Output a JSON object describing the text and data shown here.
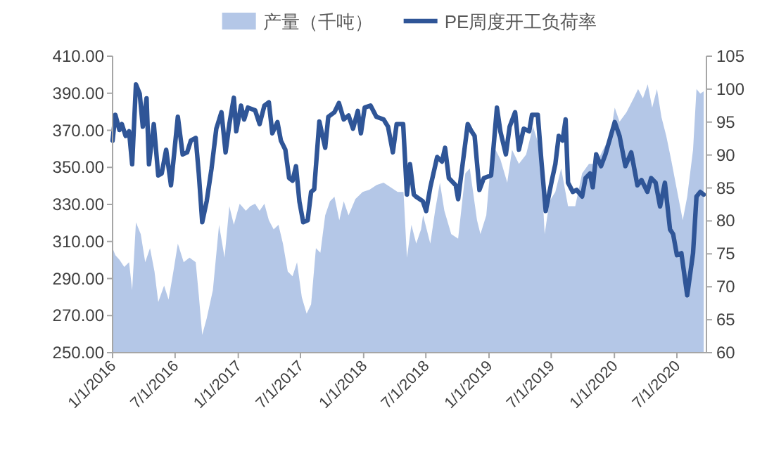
{
  "chart_data": {
    "type": "area",
    "legend": "top",
    "xlim": [
      "2016-01-01",
      "2020-09-25"
    ],
    "xticks": [
      {
        "value": "2016-01-01",
        "label": "1/1/2016"
      },
      {
        "value": "2016-07-01",
        "label": "7/1/2016"
      },
      {
        "value": "2017-01-01",
        "label": "1/1/2017"
      },
      {
        "value": "2017-07-01",
        "label": "7/1/2017"
      },
      {
        "value": "2018-01-01",
        "label": "1/1/2018"
      },
      {
        "value": "2018-07-01",
        "label": "7/1/2018"
      },
      {
        "value": "2019-01-01",
        "label": "1/1/2019"
      },
      {
        "value": "2019-07-01",
        "label": "7/1/2019"
      },
      {
        "value": "2020-01-01",
        "label": "1/1/2020"
      },
      {
        "value": "2020-07-01",
        "label": "7/1/2020"
      }
    ],
    "ylim": [
      250,
      410
    ],
    "yticks": [
      {
        "value": 250,
        "label": "250.00"
      },
      {
        "value": 270,
        "label": "270.00"
      },
      {
        "value": 290,
        "label": "290.00"
      },
      {
        "value": 310,
        "label": "310.00"
      },
      {
        "value": 330,
        "label": "330.00"
      },
      {
        "value": 350,
        "label": "350.00"
      },
      {
        "value": 370,
        "label": "370.00"
      },
      {
        "value": 390,
        "label": "390.00"
      },
      {
        "value": 410,
        "label": "410.00"
      }
    ],
    "y2lim": [
      60,
      105
    ],
    "y2ticks": [
      60,
      65,
      70,
      75,
      80,
      85,
      90,
      95,
      100,
      105
    ],
    "series": [
      {
        "name": "产量（千吨）",
        "color": "#b4c7e7",
        "x": [
          "2016-01-01",
          "2016-01-09",
          "2016-01-21",
          "2016-02-04",
          "2016-02-18",
          "2016-02-27",
          "2016-03-09",
          "2016-03-23",
          "2016-04-05",
          "2016-04-19",
          "2016-05-02",
          "2016-05-13",
          "2016-05-30",
          "2016-06-12",
          "2016-06-26",
          "2016-07-09",
          "2016-07-26",
          "2016-08-12",
          "2016-08-30",
          "2016-09-08",
          "2016-09-18",
          "2016-10-01",
          "2016-10-19",
          "2016-11-06",
          "2016-11-22",
          "2016-12-06",
          "2016-12-19",
          "2017-01-05",
          "2017-01-23",
          "2017-02-05",
          "2017-02-19",
          "2017-03-04",
          "2017-03-18",
          "2017-03-31",
          "2017-04-14",
          "2017-04-28",
          "2017-05-11",
          "2017-05-25",
          "2017-06-08",
          "2017-06-21",
          "2017-07-05",
          "2017-07-19",
          "2017-08-01",
          "2017-08-15",
          "2017-08-28",
          "2017-09-11",
          "2017-09-25",
          "2017-10-08",
          "2017-10-22",
          "2017-11-04",
          "2017-11-18",
          "2017-12-08",
          "2017-12-29",
          "2018-01-18",
          "2018-02-08",
          "2018-02-28",
          "2018-03-21",
          "2018-04-10",
          "2018-04-27",
          "2018-05-07",
          "2018-05-20",
          "2018-06-03",
          "2018-06-17",
          "2018-06-23",
          "2018-07-14",
          "2018-07-28",
          "2018-08-11",
          "2018-08-24",
          "2018-09-13",
          "2018-10-03",
          "2018-10-24",
          "2018-11-06",
          "2018-11-27",
          "2018-12-07",
          "2018-12-24",
          "2019-01-07",
          "2019-01-20",
          "2019-02-03",
          "2019-02-23",
          "2019-03-09",
          "2019-03-29",
          "2019-04-19",
          "2019-05-09",
          "2019-05-30",
          "2019-06-12",
          "2019-06-26",
          "2019-07-13",
          "2019-07-30",
          "2019-08-19",
          "2019-09-09",
          "2019-09-29",
          "2019-10-19",
          "2019-11-09",
          "2019-11-29",
          "2019-12-20",
          "2020-01-02",
          "2020-01-16",
          "2020-02-05",
          "2020-02-26",
          "2020-03-10",
          "2020-03-24",
          "2020-04-07",
          "2020-04-20",
          "2020-05-04",
          "2020-05-17",
          "2020-05-31",
          "2020-06-14",
          "2020-06-27",
          "2020-07-18",
          "2020-07-31",
          "2020-08-17",
          "2020-08-27",
          "2020-09-07",
          "2020-09-17"
        ],
        "values": [
          306.4,
          302.6,
          300.1,
          296.3,
          298.8,
          283.7,
          320.3,
          314.0,
          298.8,
          306.4,
          293.8,
          277.3,
          286.2,
          278.6,
          293.8,
          308.9,
          298.8,
          301.3,
          298.8,
          281.1,
          259.6,
          268.5,
          283.7,
          319.0,
          301.3,
          329.1,
          319.0,
          330.4,
          326.6,
          329.1,
          330.4,
          326.6,
          330.4,
          321.5,
          316.5,
          319.0,
          308.9,
          293.8,
          291.2,
          298.8,
          279.9,
          271.0,
          276.1,
          306.4,
          303.9,
          324.1,
          331.7,
          334.2,
          321.5,
          331.7,
          324.1,
          332.9,
          336.7,
          338.0,
          340.5,
          341.8,
          339.2,
          336.7,
          336.7,
          301.3,
          319.0,
          308.9,
          316.5,
          324.1,
          308.9,
          326.6,
          341.8,
          326.6,
          314.0,
          311.5,
          346.8,
          349.4,
          321.5,
          314.0,
          324.1,
          354.4,
          359.5,
          354.4,
          341.8,
          359.5,
          351.9,
          356.9,
          372.1,
          359.5,
          314.0,
          331.7,
          336.7,
          349.4,
          329.1,
          329.1,
          346.8,
          351.9,
          351.9,
          359.5,
          367.0,
          382.2,
          374.6,
          379.7,
          387.3,
          392.3,
          387.3,
          394.8,
          382.2,
          392.3,
          377.1,
          367.0,
          354.4,
          341.8,
          321.5,
          334.2,
          359.5,
          392.3,
          389.8,
          391.0
        ]
      },
      {
        "name": "PE周度开工负荷率",
        "type": "line",
        "axis": "y2",
        "color": "#2f5597",
        "x": [
          "2016-01-01",
          "2016-01-09",
          "2016-01-21",
          "2016-01-28",
          "2016-02-08",
          "2016-02-18",
          "2016-02-27",
          "2016-03-09",
          "2016-03-20",
          "2016-03-29",
          "2016-04-09",
          "2016-04-16",
          "2016-04-30",
          "2016-05-13",
          "2016-05-23",
          "2016-06-05",
          "2016-06-19",
          "2016-07-09",
          "2016-07-23",
          "2016-08-05",
          "2016-08-16",
          "2016-08-30",
          "2016-09-08",
          "2016-09-18",
          "2016-10-01",
          "2016-10-15",
          "2016-10-29",
          "2016-11-13",
          "2016-11-25",
          "2016-12-06",
          "2016-12-19",
          "2016-12-26",
          "2017-01-09",
          "2017-01-18",
          "2017-01-29",
          "2017-02-19",
          "2017-03-04",
          "2017-03-18",
          "2017-03-31",
          "2017-04-10",
          "2017-04-25",
          "2017-05-05",
          "2017-05-18",
          "2017-05-29",
          "2017-06-08",
          "2017-06-18",
          "2017-06-28",
          "2017-07-09",
          "2017-07-22",
          "2017-08-01",
          "2017-08-10",
          "2017-08-25",
          "2017-09-11",
          "2017-09-20",
          "2017-10-08",
          "2017-10-21",
          "2017-11-04",
          "2017-11-18",
          "2017-12-01",
          "2017-12-15",
          "2017-12-24",
          "2018-01-04",
          "2018-01-21",
          "2018-02-07",
          "2018-02-28",
          "2018-03-13",
          "2018-03-27",
          "2018-04-07",
          "2018-04-26",
          "2018-05-07",
          "2018-05-16",
          "2018-05-27",
          "2018-06-02",
          "2018-06-22",
          "2018-07-02",
          "2018-07-14",
          "2018-08-03",
          "2018-08-17",
          "2018-08-26",
          "2018-09-06",
          "2018-09-26",
          "2018-10-03",
          "2018-10-17",
          "2018-10-31",
          "2018-11-11",
          "2018-11-20",
          "2018-12-04",
          "2018-12-17",
          "2019-01-07",
          "2019-01-24",
          "2019-02-03",
          "2019-02-19",
          "2019-03-02",
          "2019-03-18",
          "2019-03-29",
          "2019-04-12",
          "2019-04-28",
          "2019-05-06",
          "2019-05-23",
          "2019-06-02",
          "2019-06-15",
          "2019-07-03",
          "2019-07-13",
          "2019-07-23",
          "2019-08-03",
          "2019-08-12",
          "2019-08-19",
          "2019-09-02",
          "2019-09-13",
          "2019-09-29",
          "2019-10-09",
          "2019-10-22",
          "2019-10-30",
          "2019-11-09",
          "2019-11-23",
          "2019-12-06",
          "2020-01-02",
          "2020-01-16",
          "2020-02-02",
          "2020-02-19",
          "2020-03-08",
          "2020-03-20",
          "2020-04-06",
          "2020-04-17",
          "2020-04-30",
          "2020-05-13",
          "2020-05-27",
          "2020-06-11",
          "2020-06-20",
          "2020-07-01",
          "2020-07-14",
          "2020-07-31",
          "2020-08-17",
          "2020-08-27",
          "2020-09-07",
          "2020-09-17"
        ],
        "values": [
          92.2,
          96.1,
          93.8,
          94.7,
          92.9,
          93.6,
          88.6,
          100.7,
          99.3,
          94.3,
          98.6,
          88.6,
          94.7,
          86.9,
          87.2,
          90.8,
          85.4,
          95.8,
          90.1,
          90.4,
          92.2,
          92.6,
          87.2,
          79.8,
          83.0,
          87.9,
          94.0,
          96.5,
          90.4,
          94.7,
          98.7,
          93.6,
          97.5,
          95.4,
          97.2,
          96.8,
          94.7,
          97.5,
          98.0,
          93.3,
          95.0,
          92.2,
          90.8,
          86.5,
          86.1,
          88.3,
          82.9,
          79.8,
          80.1,
          84.4,
          84.8,
          95.1,
          91.1,
          95.8,
          96.5,
          97.9,
          95.4,
          96.0,
          94.0,
          96.7,
          93.3,
          97.2,
          97.5,
          95.8,
          95.4,
          94.3,
          90.4,
          94.7,
          94.7,
          84.0,
          88.6,
          84.0,
          83.7,
          83.0,
          81.5,
          85.1,
          89.7,
          89.0,
          91.1,
          86.5,
          85.4,
          83.3,
          89.0,
          94.7,
          93.6,
          92.9,
          84.7,
          86.5,
          86.9,
          97.2,
          93.6,
          90.1,
          94.3,
          96.5,
          90.8,
          94.0,
          93.6,
          96.1,
          96.1,
          89.4,
          81.5,
          86.2,
          88.6,
          92.9,
          92.2,
          95.4,
          85.8,
          84.4,
          84.7,
          83.7,
          86.5,
          87.2,
          85.1,
          90.1,
          88.3,
          90.1,
          95.0,
          92.9,
          88.3,
          90.4,
          85.4,
          86.2,
          84.4,
          86.5,
          85.8,
          82.2,
          85.8,
          78.7,
          78.0,
          74.8,
          75.1,
          68.7,
          75.1,
          83.7,
          84.4,
          84.0
        ]
      }
    ]
  }
}
